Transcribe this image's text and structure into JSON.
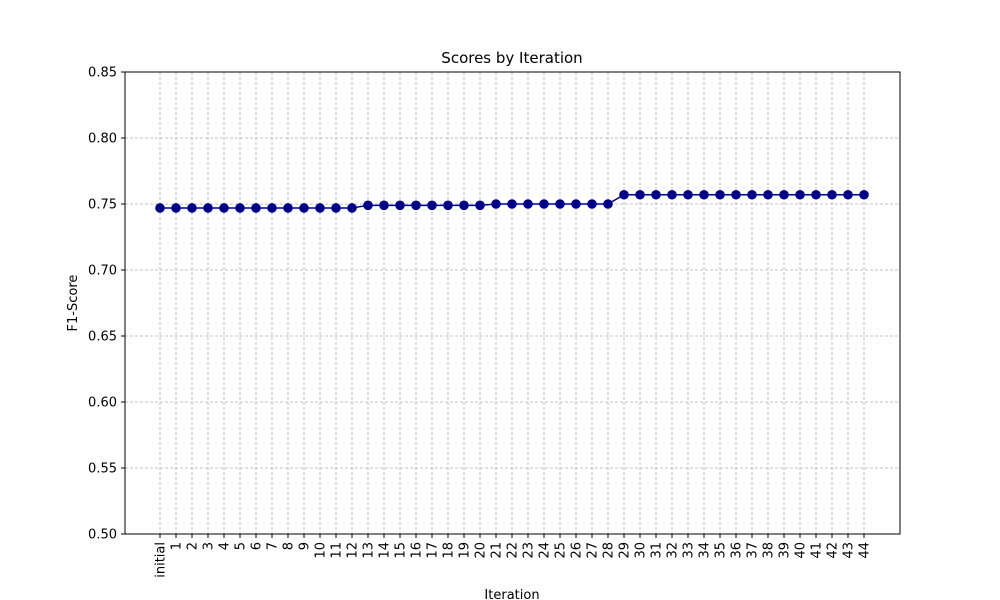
{
  "chart_data": {
    "type": "line",
    "title": "Scores by Iteration",
    "xlabel": "Iteration",
    "ylabel": "F1-Score",
    "ylim": [
      0.5,
      0.85
    ],
    "yticks": [
      "0.50",
      "0.55",
      "0.60",
      "0.65",
      "0.70",
      "0.75",
      "0.80",
      "0.85"
    ],
    "grid": true,
    "categories": [
      "initial",
      "1",
      "2",
      "3",
      "4",
      "5",
      "6",
      "7",
      "8",
      "9",
      "10",
      "11",
      "12",
      "13",
      "14",
      "15",
      "16",
      "17",
      "18",
      "19",
      "20",
      "21",
      "22",
      "23",
      "24",
      "25",
      "26",
      "27",
      "28",
      "29",
      "30",
      "31",
      "32",
      "33",
      "34",
      "35",
      "36",
      "37",
      "38",
      "39",
      "40",
      "41",
      "42",
      "43",
      "44"
    ],
    "series": [
      {
        "color": "#00008b",
        "values": [
          0.747,
          0.747,
          0.747,
          0.747,
          0.747,
          0.747,
          0.747,
          0.747,
          0.747,
          0.747,
          0.747,
          0.747,
          0.747,
          0.749,
          0.749,
          0.749,
          0.749,
          0.749,
          0.749,
          0.749,
          0.749,
          0.75,
          0.75,
          0.75,
          0.75,
          0.75,
          0.75,
          0.75,
          0.75,
          0.757,
          0.757,
          0.757,
          0.757,
          0.757,
          0.757,
          0.757,
          0.757,
          0.757,
          0.757,
          0.757,
          0.757,
          0.757,
          0.757,
          0.757,
          0.757
        ]
      }
    ]
  }
}
